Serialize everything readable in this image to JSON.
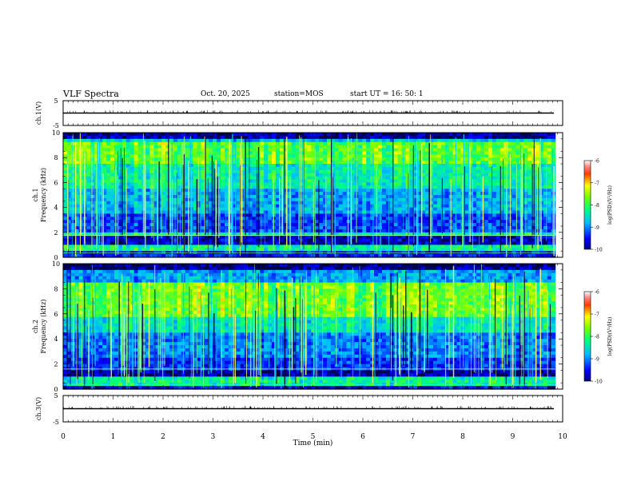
{
  "header": {
    "title": "VLF Spectra",
    "date": "Oct. 20, 2025",
    "station": "station=MOS",
    "start": "start  UT  =   16: 50: 1"
  },
  "chart_data": [
    {
      "type": "line",
      "panel": "ch1-waveform",
      "ylabel": "ch.1(V)",
      "ylim": [
        -5,
        5
      ],
      "yticks": [
        "5",
        "-5"
      ],
      "x": [
        0,
        10
      ],
      "series": [
        {
          "values": [
            0,
            0
          ]
        }
      ]
    },
    {
      "type": "heatmap",
      "panel": "ch1-spectrogram",
      "ylabel_line1": "ch.1",
      "ylabel_line2": "Frequency (kHz)",
      "ylim": [
        0,
        10
      ],
      "yticks": [
        "0",
        "2",
        "4",
        "6",
        "8",
        "10"
      ],
      "xlim": [
        0,
        10
      ],
      "data_end_min": 9.85,
      "colorbar": {
        "label": "log(PSD)(V²/Hz)",
        "ticks": [
          "-6",
          "-7",
          "-8",
          "-9",
          "-10"
        ],
        "range": [
          -10,
          -6
        ]
      }
    },
    {
      "type": "heatmap",
      "panel": "ch2-spectrogram",
      "ylabel_line1": "ch.2",
      "ylabel_line2": "Frequency (kHz)",
      "ylim": [
        0,
        10
      ],
      "yticks": [
        "0",
        "2",
        "4",
        "6",
        "8",
        "10"
      ],
      "xlim": [
        0,
        10
      ],
      "data_end_min": 9.85,
      "colorbar": {
        "label": "log(PSD)(V²/Hz)",
        "ticks": [
          "-6",
          "-7",
          "-8",
          "-9",
          "-10"
        ],
        "range": [
          -10,
          -6
        ]
      }
    },
    {
      "type": "line",
      "panel": "ch3-waveform",
      "ylabel": "ch.3(V)",
      "ylim": [
        -5,
        5
      ],
      "yticks": [
        "5",
        "-5"
      ],
      "x": [
        0,
        10
      ],
      "series": [
        {
          "values": [
            0,
            0
          ]
        }
      ]
    }
  ],
  "xaxis": {
    "label": "Time (min)",
    "ticks": [
      "0",
      "1",
      "2",
      "3",
      "4",
      "5",
      "6",
      "7",
      "8",
      "9",
      "10"
    ]
  }
}
